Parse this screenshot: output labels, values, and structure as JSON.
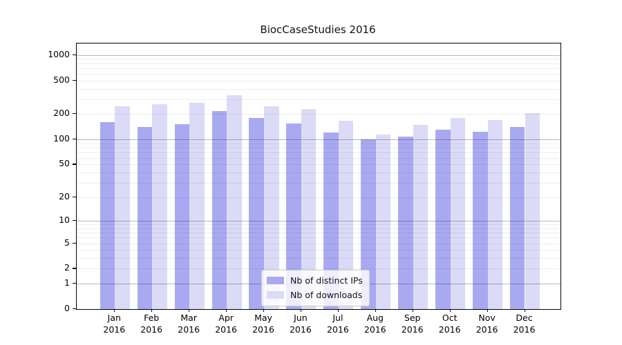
{
  "chart_data": {
    "type": "bar",
    "title": "BiocCaseStudies 2016",
    "categories": [
      "Jan",
      "Feb",
      "Mar",
      "Apr",
      "May",
      "Jun",
      "Jul",
      "Aug",
      "Sep",
      "Oct",
      "Nov",
      "Dec"
    ],
    "category_year": "2016",
    "series": [
      {
        "name": "Nb of distinct IPs",
        "color": "#a9a9f2",
        "values": [
          160,
          142,
          152,
          219,
          181,
          156,
          122,
          100,
          107,
          130,
          124,
          141
        ]
      },
      {
        "name": "Nb of downloads",
        "color": "#dbdbf8",
        "values": [
          246,
          264,
          274,
          335,
          247,
          228,
          166,
          115,
          150,
          181,
          170,
          205
        ]
      }
    ],
    "ylabel": "",
    "xlabel": "",
    "yscale": "log1p",
    "yticks": [
      0,
      1,
      2,
      5,
      10,
      20,
      50,
      100,
      200,
      500,
      1000
    ],
    "ylim": [
      0,
      1360
    ],
    "grid": "on",
    "legend_position": "lower-center"
  }
}
